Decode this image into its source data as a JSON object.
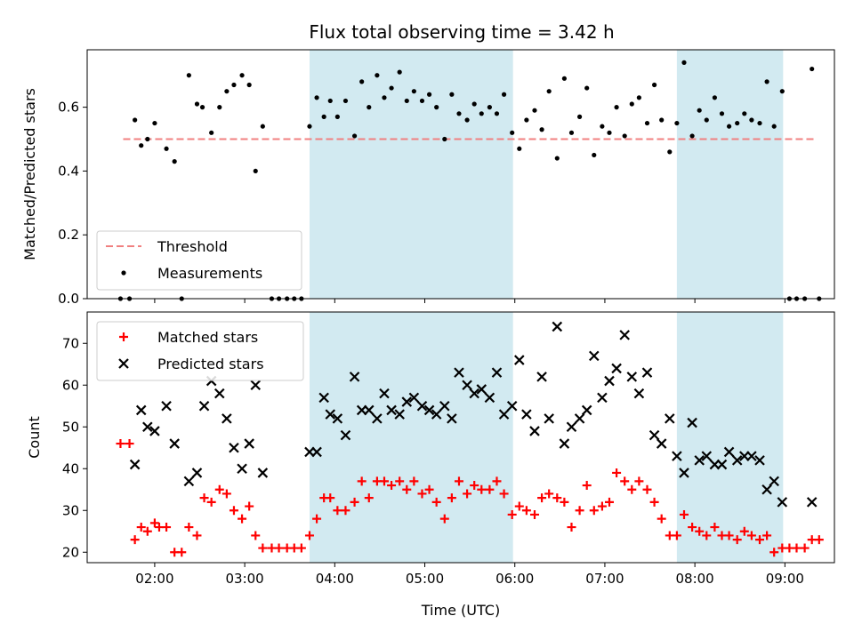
{
  "chart_data": [
    {
      "type": "scatter",
      "title": "Flux total observing time = 3.42 h",
      "xlabel": "",
      "ylabel": "Matched/Predicted stars",
      "xlim": [
        1.25,
        9.55
      ],
      "ylim": [
        0.0,
        0.78
      ],
      "yticks": [
        0.0,
        0.2,
        0.4,
        0.6
      ],
      "yticklabels": [
        "0.0",
        "0.2",
        "0.4",
        "0.6"
      ],
      "threshold": {
        "name": "Threshold",
        "value": 0.5,
        "x_range": [
          1.65,
          9.35
        ],
        "color": "#f08080",
        "style": "dashed"
      },
      "observing_windows": [
        [
          3.72,
          5.98
        ],
        [
          7.8,
          8.98
        ]
      ],
      "window_color": "#add8e6",
      "legend": {
        "placement": "lower-left",
        "entries": [
          "Threshold",
          "Measurements"
        ]
      },
      "series": [
        {
          "name": "Measurements",
          "marker": "dot",
          "color": "#000000",
          "x": [
            1.62,
            1.72,
            1.78,
            1.85,
            1.92,
            2.0,
            2.13,
            2.22,
            2.3,
            2.38,
            2.47,
            2.53,
            2.63,
            2.72,
            2.8,
            2.88,
            2.97,
            3.05,
            3.12,
            3.2,
            3.3,
            3.38,
            3.47,
            3.55,
            3.63,
            3.72,
            3.8,
            3.88,
            3.95,
            4.03,
            4.12,
            4.22,
            4.3,
            4.38,
            4.47,
            4.55,
            4.63,
            4.72,
            4.8,
            4.88,
            4.97,
            5.05,
            5.13,
            5.22,
            5.3,
            5.38,
            5.47,
            5.55,
            5.63,
            5.72,
            5.8,
            5.88,
            5.97,
            6.05,
            6.13,
            6.22,
            6.3,
            6.38,
            6.47,
            6.55,
            6.63,
            6.72,
            6.8,
            6.88,
            6.97,
            7.05,
            7.13,
            7.22,
            7.3,
            7.38,
            7.47,
            7.55,
            7.63,
            7.72,
            7.8,
            7.88,
            7.97,
            8.05,
            8.13,
            8.22,
            8.3,
            8.38,
            8.47,
            8.55,
            8.63,
            8.72,
            8.8,
            8.88,
            8.97,
            9.05,
            9.13,
            9.22,
            9.3,
            9.38
          ],
          "y": [
            0.0,
            0.0,
            0.56,
            0.48,
            0.5,
            0.55,
            0.47,
            0.43,
            0.0,
            0.7,
            0.61,
            0.6,
            0.52,
            0.6,
            0.65,
            0.67,
            0.7,
            0.67,
            0.4,
            0.54,
            0.0,
            0.0,
            0.0,
            0.0,
            0.0,
            0.54,
            0.63,
            0.57,
            0.62,
            0.57,
            0.62,
            0.51,
            0.68,
            0.6,
            0.7,
            0.63,
            0.66,
            0.71,
            0.62,
            0.65,
            0.62,
            0.64,
            0.6,
            0.5,
            0.64,
            0.58,
            0.56,
            0.61,
            0.58,
            0.6,
            0.58,
            0.64,
            0.52,
            0.47,
            0.56,
            0.59,
            0.53,
            0.65,
            0.44,
            0.69,
            0.52,
            0.57,
            0.66,
            0.45,
            0.54,
            0.52,
            0.6,
            0.51,
            0.61,
            0.63,
            0.55,
            0.67,
            0.56,
            0.46,
            0.55,
            0.74,
            0.51,
            0.59,
            0.56,
            0.63,
            0.58,
            0.54,
            0.55,
            0.58,
            0.56,
            0.55,
            0.68,
            0.54,
            0.65,
            0.0,
            0.0,
            0.0,
            0.72,
            0.0
          ]
        }
      ]
    },
    {
      "type": "scatter",
      "title": "",
      "xlabel": "Time (UTC)",
      "ylabel": "Count",
      "xlim": [
        1.25,
        9.55
      ],
      "ylim": [
        17.5,
        77.5
      ],
      "yticks": [
        20,
        30,
        40,
        50,
        60,
        70
      ],
      "yticklabels": [
        "20",
        "30",
        "40",
        "50",
        "60",
        "70"
      ],
      "xticks": [
        2,
        3,
        4,
        5,
        6,
        7,
        8,
        9
      ],
      "xticklabels": [
        "02:00",
        "03:00",
        "04:00",
        "05:00",
        "06:00",
        "07:00",
        "08:00",
        "09:00"
      ],
      "observing_windows": [
        [
          3.72,
          5.98
        ],
        [
          7.8,
          8.98
        ]
      ],
      "window_color": "#add8e6",
      "legend": {
        "placement": "upper-left",
        "entries": [
          "Matched stars",
          "Predicted stars"
        ]
      },
      "series": [
        {
          "name": "Matched stars",
          "marker": "plus",
          "color": "#ff0000",
          "x": [
            1.62,
            1.72,
            1.78,
            1.85,
            1.92,
            2.0,
            2.05,
            2.13,
            2.22,
            2.3,
            2.38,
            2.47,
            2.55,
            2.63,
            2.72,
            2.8,
            2.88,
            2.97,
            3.05,
            3.12,
            3.2,
            3.3,
            3.38,
            3.47,
            3.55,
            3.63,
            3.72,
            3.8,
            3.88,
            3.95,
            4.03,
            4.12,
            4.22,
            4.3,
            4.38,
            4.47,
            4.55,
            4.63,
            4.72,
            4.8,
            4.88,
            4.97,
            5.05,
            5.13,
            5.22,
            5.3,
            5.38,
            5.47,
            5.55,
            5.63,
            5.72,
            5.8,
            5.88,
            5.97,
            6.05,
            6.13,
            6.22,
            6.3,
            6.38,
            6.47,
            6.55,
            6.63,
            6.72,
            6.8,
            6.88,
            6.97,
            7.05,
            7.13,
            7.22,
            7.3,
            7.38,
            7.47,
            7.55,
            7.63,
            7.72,
            7.8,
            7.88,
            7.97,
            8.05,
            8.13,
            8.22,
            8.3,
            8.38,
            8.47,
            8.55,
            8.63,
            8.72,
            8.8,
            8.88,
            8.97,
            9.05,
            9.13,
            9.22,
            9.3,
            9.38
          ],
          "y": [
            46,
            46,
            23,
            26,
            25,
            27,
            26,
            26,
            20,
            20,
            26,
            24,
            33,
            32,
            35,
            34,
            30,
            28,
            31,
            24,
            21,
            21,
            21,
            21,
            21,
            21,
            24,
            28,
            33,
            33,
            30,
            30,
            32,
            37,
            33,
            37,
            37,
            36,
            37,
            35,
            37,
            34,
            35,
            32,
            28,
            33,
            37,
            34,
            36,
            35,
            35,
            37,
            34,
            29,
            31,
            30,
            29,
            33,
            34,
            33,
            32,
            26,
            30,
            36,
            30,
            31,
            32,
            39,
            37,
            35,
            37,
            35,
            32,
            28,
            24,
            24,
            29,
            26,
            25,
            24,
            26,
            24,
            24,
            23,
            25,
            24,
            23,
            24,
            20,
            21,
            21,
            21,
            21,
            23,
            23
          ]
        },
        {
          "name": "Predicted stars",
          "marker": "x",
          "color": "#000000",
          "x": [
            1.78,
            1.85,
            1.92,
            2.0,
            2.13,
            2.22,
            2.38,
            2.47,
            2.55,
            2.63,
            2.72,
            2.8,
            2.88,
            2.97,
            3.05,
            3.12,
            3.2,
            3.72,
            3.8,
            3.88,
            3.95,
            4.03,
            4.12,
            4.22,
            4.3,
            4.38,
            4.47,
            4.55,
            4.63,
            4.72,
            4.8,
            4.88,
            4.97,
            5.05,
            5.13,
            5.22,
            5.3,
            5.38,
            5.47,
            5.55,
            5.63,
            5.72,
            5.8,
            5.88,
            5.97,
            6.05,
            6.13,
            6.22,
            6.3,
            6.38,
            6.47,
            6.55,
            6.63,
            6.72,
            6.8,
            6.88,
            6.97,
            7.05,
            7.13,
            7.22,
            7.3,
            7.38,
            7.47,
            7.55,
            7.63,
            7.72,
            7.8,
            7.88,
            7.97,
            8.05,
            8.13,
            8.22,
            8.3,
            8.38,
            8.47,
            8.55,
            8.63,
            8.72,
            8.8,
            8.88,
            8.97,
            9.3
          ],
          "y": [
            41,
            54,
            50,
            49,
            55,
            46,
            37,
            39,
            55,
            61,
            58,
            52,
            45,
            40,
            46,
            60,
            39,
            44,
            44,
            57,
            53,
            52,
            48,
            62,
            54,
            54,
            52,
            58,
            54,
            53,
            56,
            57,
            55,
            54,
            53,
            55,
            52,
            63,
            60,
            58,
            59,
            57,
            63,
            53,
            55,
            66,
            53,
            49,
            62,
            52,
            74,
            46,
            50,
            52,
            54,
            67,
            57,
            61,
            64,
            72,
            62,
            58,
            63,
            48,
            46,
            52,
            43,
            39,
            51,
            42,
            43,
            41,
            41,
            44,
            42,
            43,
            43,
            42,
            35,
            37,
            32,
            32
          ]
        }
      ]
    }
  ]
}
